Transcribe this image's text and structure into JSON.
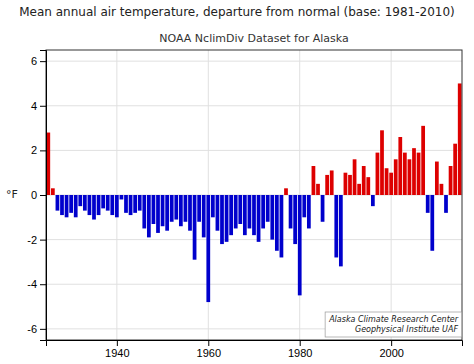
{
  "chart_data": {
    "type": "bar",
    "title": "Mean annual air temperature, departure from normal (base: 1981-2010)",
    "subtitle": "NOAA NclimDiv Dataset for Alaska",
    "ylabel": "°F",
    "annotations": [
      "Alaska Climate Research Center\nGeophysical Institute UAF"
    ],
    "xlim": [
      1924.5,
      2015.5
    ],
    "ylim": [
      -6.5,
      6.5
    ],
    "xticks": [
      1940,
      1960,
      1980,
      2000
    ],
    "yticks": [
      -6,
      -4,
      -2,
      0,
      2,
      4,
      6
    ],
    "grid": true,
    "x": [
      1925,
      1926,
      1927,
      1928,
      1929,
      1930,
      1931,
      1932,
      1933,
      1934,
      1935,
      1936,
      1937,
      1938,
      1939,
      1940,
      1941,
      1942,
      1943,
      1944,
      1945,
      1946,
      1947,
      1948,
      1949,
      1950,
      1951,
      1952,
      1953,
      1954,
      1955,
      1956,
      1957,
      1958,
      1959,
      1960,
      1961,
      1962,
      1963,
      1964,
      1965,
      1966,
      1967,
      1968,
      1969,
      1970,
      1971,
      1972,
      1973,
      1974,
      1975,
      1976,
      1977,
      1978,
      1979,
      1980,
      1981,
      1982,
      1983,
      1984,
      1985,
      1986,
      1987,
      1988,
      1989,
      1990,
      1991,
      1992,
      1993,
      1994,
      1995,
      1996,
      1997,
      1998,
      1999,
      2000,
      2001,
      2002,
      2003,
      2004,
      2005,
      2006,
      2007,
      2008,
      2009,
      2010,
      2011,
      2012,
      2013,
      2014,
      2015
    ],
    "values": [
      2.8,
      0.3,
      -0.7,
      -0.9,
      -1.0,
      -0.8,
      -1.0,
      -0.5,
      -0.7,
      -0.9,
      -1.1,
      -0.9,
      -0.6,
      -0.7,
      -0.9,
      -1.0,
      -0.2,
      -0.8,
      -0.9,
      -0.8,
      -0.7,
      -1.5,
      -1.9,
      -1.3,
      -1.7,
      -1.4,
      -1.6,
      -1.2,
      -1.1,
      -1.4,
      -1.2,
      -1.6,
      -2.9,
      -1.2,
      -1.9,
      -4.8,
      -1.0,
      -1.6,
      -2.2,
      -2.1,
      -1.8,
      -1.5,
      -1.3,
      -1.8,
      -1.5,
      -1.8,
      -2.1,
      -1.5,
      -1.2,
      -2.0,
      -2.5,
      -2.8,
      0.3,
      -1.5,
      -2.2,
      -4.5,
      -1.0,
      -1.5,
      1.3,
      0.5,
      -1.2,
      0.9,
      1.1,
      -2.8,
      -3.2,
      1.0,
      0.9,
      1.6,
      0.5,
      1.3,
      0.8,
      -0.5,
      1.9,
      2.9,
      1.2,
      1.0,
      1.6,
      2.6,
      1.9,
      1.6,
      2.1,
      1.9,
      3.1,
      -0.8,
      -2.5,
      1.5,
      0.5,
      -0.8,
      1.3,
      2.3,
      5.0
    ],
    "colors": [
      "#dd0000",
      "#dd0000",
      "#0000cc",
      "#0000cc",
      "#0000cc",
      "#0000cc",
      "#0000cc",
      "#0000cc",
      "#0000cc",
      "#0000cc",
      "#0000cc",
      "#0000cc",
      "#0000cc",
      "#0000cc",
      "#0000cc",
      "#0000cc",
      "#0000cc",
      "#0000cc",
      "#0000cc",
      "#0000cc",
      "#0000cc",
      "#0000cc",
      "#0000cc",
      "#0000cc",
      "#0000cc",
      "#0000cc",
      "#0000cc",
      "#0000cc",
      "#0000cc",
      "#0000cc",
      "#0000cc",
      "#0000cc",
      "#0000cc",
      "#0000cc",
      "#0000cc",
      "#0000cc",
      "#0000cc",
      "#0000cc",
      "#0000cc",
      "#0000cc",
      "#0000cc",
      "#0000cc",
      "#0000cc",
      "#0000cc",
      "#0000cc",
      "#0000cc",
      "#0000cc",
      "#0000cc",
      "#0000cc",
      "#0000cc",
      "#0000cc",
      "#0000cc",
      "#dd0000",
      "#0000cc",
      "#0000cc",
      "#0000cc",
      "#0000cc",
      "#0000cc",
      "#dd0000",
      "#dd0000",
      "#0000cc",
      "#dd0000",
      "#dd0000",
      "#0000cc",
      "#0000cc",
      "#dd0000",
      "#dd0000",
      "#dd0000",
      "#dd0000",
      "#dd0000",
      "#dd0000",
      "#0000cc",
      "#dd0000",
      "#dd0000",
      "#dd0000",
      "#dd0000",
      "#dd0000",
      "#dd0000",
      "#dd0000",
      "#dd0000",
      "#dd0000",
      "#dd0000",
      "#dd0000",
      "#0000cc",
      "#0000cc",
      "#dd0000",
      "#dd0000",
      "#0000cc",
      "#dd0000",
      "#dd0000",
      "#dd0000"
    ]
  }
}
